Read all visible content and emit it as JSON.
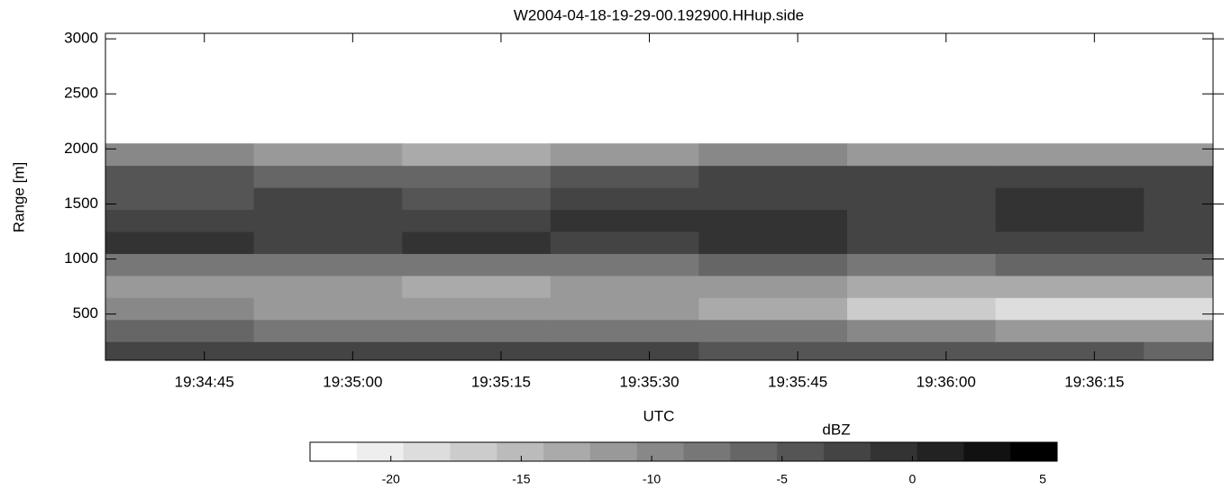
{
  "chart_data": {
    "type": "heatmap",
    "title": "W2004-04-18-19-29-00.192900.HHup.side",
    "x_label": "UTC",
    "y_label": "Range [m]",
    "xlim": [
      "19:34:35",
      "19:36:27"
    ],
    "xticks": [
      "19:34:45",
      "19:35:00",
      "19:35:15",
      "19:35:30",
      "19:35:45",
      "19:36:00",
      "19:36:15"
    ],
    "ylim": [
      80,
      3050
    ],
    "yticks": [
      500,
      1000,
      1500,
      2000,
      2500,
      3000
    ],
    "x_bins": [
      "19:34:35",
      "19:34:50",
      "19:35:05",
      "19:35:20",
      "19:35:35",
      "19:35:50",
      "19:36:05",
      "19:36:20",
      "19:36:27"
    ],
    "y_bins": [
      80,
      250,
      450,
      650,
      850,
      1050,
      1250,
      1450,
      1650,
      1850,
      2050,
      3050
    ],
    "z": [
      [
        -3,
        -3,
        -2,
        -3,
        -4,
        -5,
        -5,
        -6
      ],
      [
        -6,
        -7,
        -8,
        -7,
        -8,
        -10,
        -11,
        -12
      ],
      [
        -10,
        -11,
        -11,
        -12,
        -13,
        -16,
        -18,
        -19
      ],
      [
        -11,
        -12,
        -13,
        -12,
        -11,
        -13,
        -14,
        -13
      ],
      [
        -7,
        -8,
        -8,
        -7,
        -6,
        -7,
        -6,
        -6
      ],
      [
        -1,
        -2,
        -1,
        -2,
        -1,
        -2,
        -3,
        -3
      ],
      [
        -3,
        -2,
        -2,
        -1,
        -1,
        -2,
        -1,
        -2
      ],
      [
        -4,
        -3,
        -4,
        -3,
        -3,
        -2,
        -1,
        -2
      ],
      [
        -5,
        -6,
        -6,
        -4,
        -2,
        -3,
        -2,
        -3
      ],
      [
        -10,
        -12,
        -13,
        -12,
        -10,
        -11,
        -11,
        -11
      ],
      [
        null,
        null,
        null,
        null,
        null,
        null,
        null,
        null
      ]
    ],
    "colorbar": {
      "label": "dBZ",
      "clim": [
        -23.1,
        5.55
      ],
      "levels": 16,
      "ticks": [
        -20,
        -15,
        -10,
        -5,
        0,
        5
      ]
    }
  }
}
